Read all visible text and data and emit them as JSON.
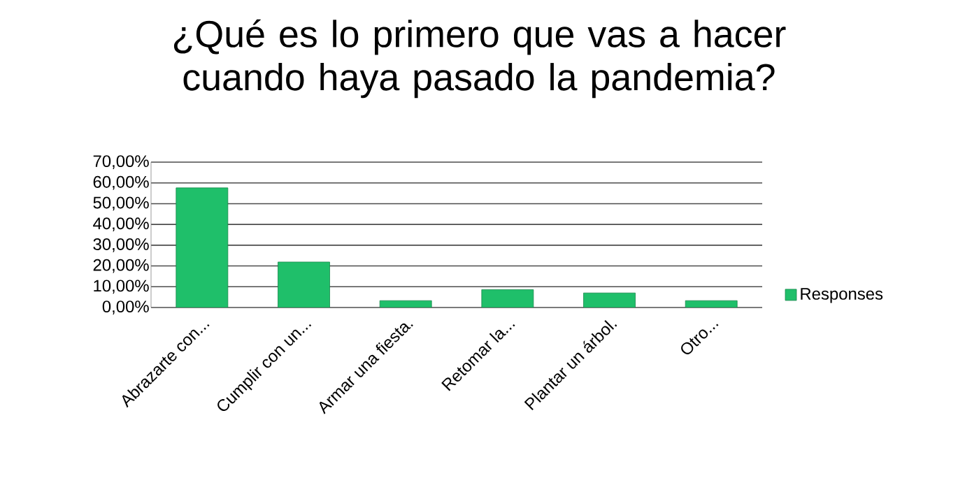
{
  "chart_data": {
    "type": "bar",
    "title": "¿Qué es lo primero que vas a hacer cuando haya pasado la pandemia?",
    "categories": [
      "Abrazarte con...",
      "Cumplir con un...",
      "Armar una fiesta.",
      "Retomar la...",
      "Plantar un árbol.",
      "Otro..."
    ],
    "series": [
      {
        "name": "Responses",
        "color": "#1fbf6a",
        "values": [
          57.6,
          21.9,
          3.3,
          8.6,
          7.0,
          3.3
        ]
      }
    ],
    "ylim": [
      0,
      70
    ],
    "yticks": [
      {
        "value": 0,
        "label": "0,00%"
      },
      {
        "value": 10,
        "label": "10,00%"
      },
      {
        "value": 20,
        "label": "20,00%"
      },
      {
        "value": 30,
        "label": "30,00%"
      },
      {
        "value": 40,
        "label": "40,00%"
      },
      {
        "value": 50,
        "label": "50,00%"
      },
      {
        "value": 60,
        "label": "60,00%"
      },
      {
        "value": 70,
        "label": "70,00%"
      }
    ],
    "grid": "y",
    "legend": "right"
  }
}
